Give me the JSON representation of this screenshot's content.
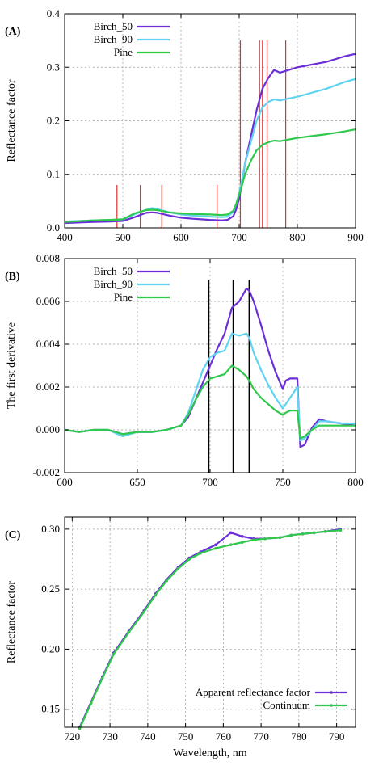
{
  "chart_data": [
    {
      "panel": "(A)",
      "type": "line",
      "xlabel": "",
      "ylabel": "Reflectance factor",
      "xlim": [
        400,
        900
      ],
      "ylim": [
        0,
        0.4
      ],
      "xticks": [
        400,
        500,
        600,
        700,
        800,
        900
      ],
      "yticks": [
        0,
        0.1,
        0.2,
        0.3,
        0.4
      ],
      "xtick_labels": [
        "400",
        "500",
        "600",
        "700",
        "800",
        "900"
      ],
      "ytick_labels": [
        "0.0",
        "0.1",
        "0.2",
        "0.3",
        "0.4"
      ],
      "grid": true,
      "legend_position": "top-left",
      "series": [
        {
          "name": "Birch_50",
          "color": "#6a2fd6",
          "x": [
            400,
            450,
            480,
            500,
            520,
            540,
            550,
            560,
            580,
            600,
            620,
            650,
            670,
            680,
            690,
            695,
            700,
            705,
            710,
            720,
            730,
            740,
            750,
            760,
            770,
            800,
            850,
            880,
            900
          ],
          "y": [
            0.009,
            0.011,
            0.012,
            0.013,
            0.02,
            0.028,
            0.029,
            0.028,
            0.023,
            0.019,
            0.017,
            0.015,
            0.014,
            0.015,
            0.022,
            0.035,
            0.055,
            0.085,
            0.12,
            0.17,
            0.22,
            0.26,
            0.28,
            0.295,
            0.29,
            0.3,
            0.31,
            0.32,
            0.325
          ]
        },
        {
          "name": "Birch_90",
          "color": "#5fd3f0",
          "x": [
            400,
            450,
            480,
            500,
            520,
            540,
            550,
            560,
            580,
            600,
            620,
            650,
            670,
            680,
            690,
            695,
            700,
            705,
            710,
            720,
            730,
            740,
            750,
            760,
            770,
            800,
            850,
            880,
            900
          ],
          "y": [
            0.012,
            0.014,
            0.015,
            0.016,
            0.025,
            0.034,
            0.037,
            0.035,
            0.029,
            0.025,
            0.023,
            0.021,
            0.02,
            0.021,
            0.03,
            0.045,
            0.065,
            0.09,
            0.12,
            0.16,
            0.2,
            0.225,
            0.235,
            0.24,
            0.238,
            0.245,
            0.26,
            0.272,
            0.278
          ]
        },
        {
          "name": "Pine",
          "color": "#2ec84a",
          "x": [
            400,
            450,
            480,
            500,
            520,
            540,
            550,
            560,
            580,
            600,
            620,
            650,
            670,
            680,
            690,
            695,
            700,
            705,
            710,
            720,
            730,
            740,
            750,
            760,
            770,
            800,
            850,
            880,
            900
          ],
          "y": [
            0.011,
            0.014,
            0.015,
            0.016,
            0.027,
            0.033,
            0.034,
            0.033,
            0.029,
            0.027,
            0.026,
            0.025,
            0.024,
            0.025,
            0.032,
            0.045,
            0.062,
            0.08,
            0.1,
            0.125,
            0.145,
            0.155,
            0.16,
            0.163,
            0.162,
            0.168,
            0.175,
            0.18,
            0.184
          ]
        }
      ],
      "vertical_markers": {
        "color": "#e03030",
        "y_top": [
          0.08,
          0.08,
          0.08,
          0.08,
          0.35,
          0.35,
          0.35,
          0.35,
          0.35
        ],
        "x": [
          490,
          530,
          567,
          662,
          702,
          735,
          740,
          748,
          780
        ]
      }
    },
    {
      "panel": "(B)",
      "type": "line",
      "xlabel": "",
      "ylabel": "The first derivative",
      "xlim": [
        600,
        800
      ],
      "ylim": [
        -0.002,
        0.008
      ],
      "xticks": [
        600,
        650,
        700,
        750,
        800
      ],
      "yticks": [
        -0.002,
        0,
        0.002,
        0.004,
        0.006,
        0.008
      ],
      "xtick_labels": [
        "600",
        "650",
        "700",
        "750",
        "800"
      ],
      "ytick_labels": [
        "-0.002",
        "0.000",
        "0.002",
        "0.004",
        "0.006",
        "0.008"
      ],
      "grid": true,
      "legend_position": "top-left",
      "series": [
        {
          "name": "Birch_50",
          "color": "#6a2fd6",
          "x": [
            600,
            610,
            620,
            630,
            640,
            650,
            660,
            670,
            680,
            685,
            690,
            695,
            700,
            705,
            710,
            715,
            720,
            725,
            727,
            730,
            735,
            740,
            745,
            750,
            752,
            755,
            760,
            762,
            765,
            770,
            775,
            780,
            790,
            800
          ],
          "y": [
            0,
            -0.0001,
            0,
            0,
            -0.0002,
            -0.0001,
            -0.0001,
            0,
            0.0002,
            0.0006,
            0.0014,
            0.0022,
            0.003,
            0.0038,
            0.0045,
            0.0057,
            0.006,
            0.0066,
            0.0065,
            0.006,
            0.0049,
            0.0037,
            0.0027,
            0.0019,
            0.0023,
            0.0024,
            0.0024,
            -0.0008,
            -0.0007,
            0.0001,
            0.0005,
            0.0004,
            0.0003,
            0.0002
          ]
        },
        {
          "name": "Birch_90",
          "color": "#5fd3f0",
          "x": [
            600,
            610,
            620,
            630,
            640,
            650,
            660,
            670,
            680,
            685,
            690,
            695,
            700,
            705,
            710,
            715,
            720,
            725,
            727,
            730,
            735,
            740,
            745,
            750,
            752,
            755,
            760,
            762,
            765,
            770,
            775,
            780,
            790,
            800
          ],
          "y": [
            0,
            -0.0001,
            0,
            0,
            -0.0003,
            -0.0001,
            -0.0001,
            0,
            0.0002,
            0.0008,
            0.0018,
            0.0028,
            0.0034,
            0.0036,
            0.0037,
            0.0045,
            0.0044,
            0.0045,
            0.0043,
            0.0036,
            0.0028,
            0.0021,
            0.0015,
            0.001,
            0.0012,
            0.0015,
            0.002,
            -0.0005,
            -0.0004,
            0,
            0.0004,
            0.0004,
            0.0003,
            0.0003
          ]
        },
        {
          "name": "Pine",
          "color": "#2ec84a",
          "x": [
            600,
            610,
            620,
            630,
            640,
            650,
            660,
            670,
            680,
            685,
            690,
            695,
            700,
            705,
            710,
            715,
            720,
            725,
            727,
            730,
            735,
            740,
            745,
            750,
            752,
            755,
            760,
            762,
            765,
            770,
            775,
            780,
            790,
            800
          ],
          "y": [
            0,
            -0.0001,
            0,
            0,
            -0.0002,
            -0.0001,
            -0.0001,
            0,
            0.0002,
            0.0007,
            0.0014,
            0.002,
            0.0024,
            0.0025,
            0.0026,
            0.003,
            0.0028,
            0.0025,
            0.0023,
            0.0019,
            0.0015,
            0.0012,
            0.0009,
            0.0007,
            0.0008,
            0.0009,
            0.0009,
            -0.0004,
            -0.0003,
            0,
            0.0002,
            0.0002,
            0.0002,
            0.0002
          ]
        }
      ],
      "vertical_markers": {
        "color": "#000000",
        "y_top": [
          0.007,
          0.007,
          0.007
        ],
        "x": [
          699,
          716,
          727
        ]
      }
    },
    {
      "panel": "(C)",
      "type": "line",
      "xlabel": "Wavelength, nm",
      "ylabel": "Reflectance factor",
      "xlim": [
        718,
        795
      ],
      "ylim": [
        0.135,
        0.31
      ],
      "xticks": [
        720,
        730,
        740,
        750,
        760,
        770,
        780,
        790
      ],
      "yticks": [
        0.15,
        0.2,
        0.25,
        0.3
      ],
      "xtick_labels": [
        "720",
        "730",
        "740",
        "750",
        "760",
        "770",
        "780",
        "790"
      ],
      "ytick_labels": [
        "0.15",
        "0.20",
        "0.25",
        "0.30"
      ],
      "grid": true,
      "legend_position": "bottom-right",
      "series": [
        {
          "name": "Apparent reflectance factor",
          "color": "#6a2fd6",
          "x": [
            722,
            725,
            728,
            731,
            735,
            739,
            742,
            745,
            748,
            751,
            754,
            758,
            762,
            765,
            768,
            771,
            775,
            778,
            781,
            784,
            787,
            791
          ],
          "y": [
            0.135,
            0.156,
            0.177,
            0.197,
            0.215,
            0.232,
            0.246,
            0.258,
            0.268,
            0.276,
            0.281,
            0.287,
            0.297,
            0.294,
            0.292,
            0.292,
            0.293,
            0.295,
            0.296,
            0.297,
            0.298,
            0.3
          ]
        },
        {
          "name": "Continuum",
          "color": "#2ec84a",
          "x": [
            722,
            725,
            728,
            731,
            735,
            739,
            742,
            745,
            748,
            751,
            754,
            758,
            762,
            765,
            768,
            771,
            775,
            778,
            781,
            784,
            787,
            791
          ],
          "y": [
            0.134,
            0.155,
            0.176,
            0.196,
            0.214,
            0.231,
            0.245,
            0.257,
            0.267,
            0.275,
            0.28,
            0.284,
            0.287,
            0.289,
            0.291,
            0.292,
            0.293,
            0.295,
            0.296,
            0.297,
            0.298,
            0.299
          ]
        }
      ]
    }
  ]
}
